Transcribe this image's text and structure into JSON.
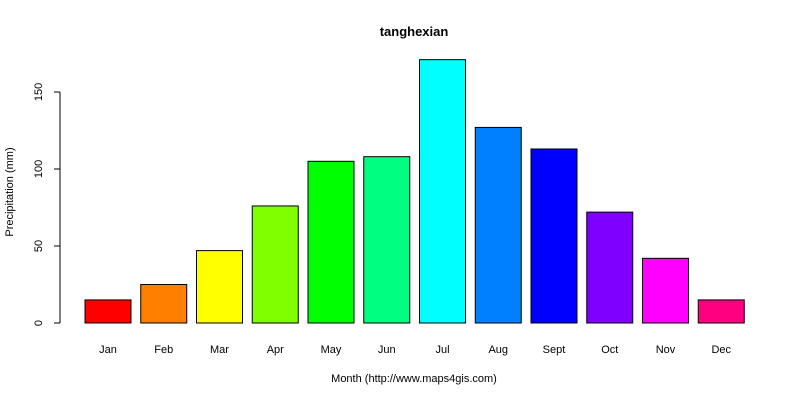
{
  "chart_data": {
    "type": "bar",
    "title": "tanghexian",
    "xlabel": "Month (http://www.maps4gis.com)",
    "ylabel": "Precipitation (mm)",
    "categories": [
      "Jan",
      "Feb",
      "Mar",
      "Apr",
      "May",
      "Jun",
      "Jul",
      "Aug",
      "Sept",
      "Oct",
      "Nov",
      "Dec"
    ],
    "values": [
      15,
      25,
      47,
      76,
      105,
      108,
      171,
      127,
      113,
      72,
      42,
      15
    ],
    "colors": [
      "#ff0000",
      "#ff8000",
      "#ffff00",
      "#80ff00",
      "#00ff00",
      "#00ff80",
      "#00ffff",
      "#0080ff",
      "#0000ff",
      "#8000ff",
      "#ff00ff",
      "#ff0080"
    ],
    "ylim": [
      0,
      171
    ],
    "yticks": [
      0,
      50,
      100,
      150
    ],
    "grid": false,
    "legend": "none"
  }
}
